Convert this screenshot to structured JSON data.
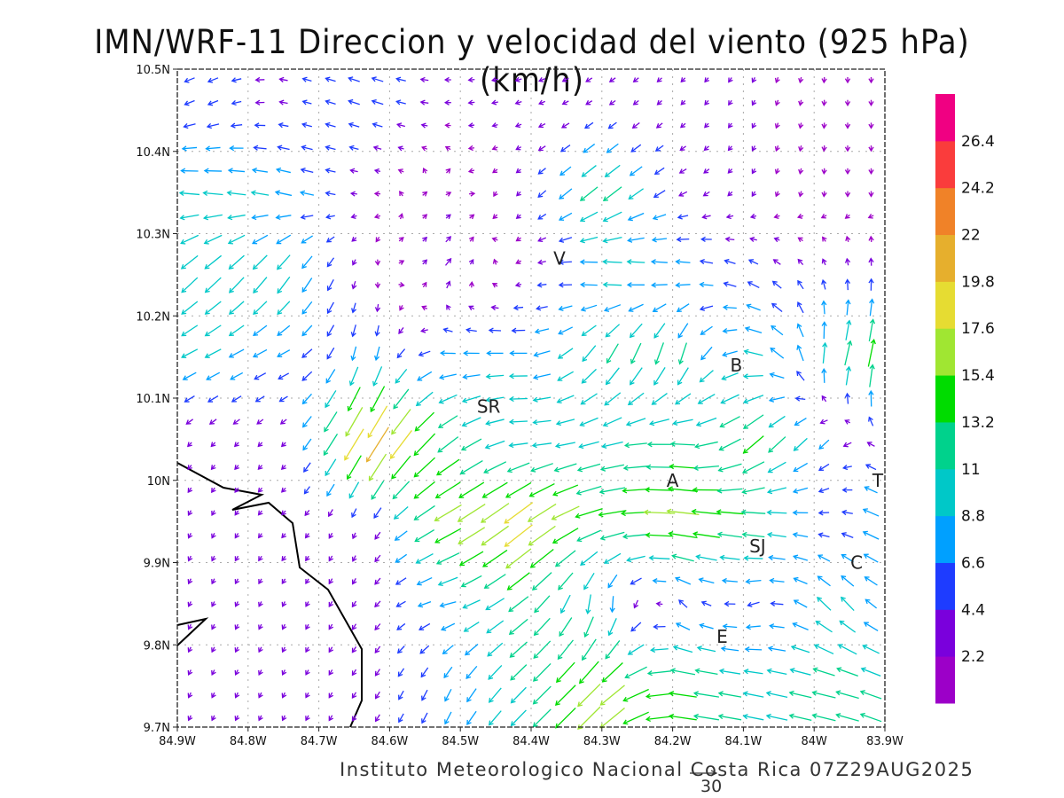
{
  "title": "IMN/WRF-11 Direccion y velocidad del viento (925 hPa)(km/h)",
  "footer": "Instituto Meteorologico Nacional Costa Rica  07Z29AUG2025",
  "reference_vector": {
    "label": "30",
    "value": 30
  },
  "chart_data": {
    "type": "vector-field",
    "units": "km/h",
    "xlim": [
      -84.9,
      -83.9
    ],
    "ylim": [
      9.7,
      10.5
    ],
    "x_ticks": [
      "84.9W",
      "84.8W",
      "84.7W",
      "84.6W",
      "84.5W",
      "84.4W",
      "84.3W",
      "84.2W",
      "84.1W",
      "84W",
      "83.9W"
    ],
    "y_ticks": [
      "10.5N",
      "10.4N",
      "10.3N",
      "10.2N",
      "10.1N",
      "10N",
      "9.9N",
      "9.8N",
      "9.7N"
    ],
    "grid": true,
    "colorbar": {
      "labels": [
        "2.2",
        "4.4",
        "6.6",
        "8.8",
        "11",
        "13.2",
        "15.4",
        "17.6",
        "19.8",
        "22",
        "24.2",
        "26.4"
      ],
      "colors": [
        "#9c00c8",
        "#7a00dc",
        "#1e3cff",
        "#00a0ff",
        "#00c8c8",
        "#00d28c",
        "#00dc00",
        "#a0e632",
        "#e6dc32",
        "#e6af2d",
        "#f08228",
        "#fa3c3c",
        "#f00082"
      ]
    },
    "coarse_grid_lat": [
      10.45,
      10.35,
      10.25,
      10.15,
      10.05,
      9.95,
      9.85,
      9.75
    ],
    "coarse_grid_lon": [
      -84.85,
      -84.74,
      -84.63,
      -84.52,
      -84.41,
      -84.3,
      -84.19,
      -84.08,
      -83.97,
      -83.9
    ],
    "wind_uv": [
      [
        [
          -5,
          -2
        ],
        [
          -4,
          1
        ],
        [
          -6,
          2
        ],
        [
          -3,
          0
        ],
        [
          -3,
          -1
        ],
        [
          -3,
          -2
        ],
        [
          -2,
          -2
        ],
        [
          -1,
          -2
        ],
        [
          0,
          -2
        ],
        [
          0,
          -2
        ]
      ],
      [
        [
          -10,
          1
        ],
        [
          -8,
          2
        ],
        [
          -2,
          0
        ],
        [
          2,
          1
        ],
        [
          -2,
          -2
        ],
        [
          -10,
          -8
        ],
        [
          -4,
          -2
        ],
        [
          -1,
          -2
        ],
        [
          0,
          -2
        ],
        [
          0,
          -2
        ]
      ],
      [
        [
          -8,
          -8
        ],
        [
          -6,
          -9
        ],
        [
          0,
          -2
        ],
        [
          3,
          4
        ],
        [
          -2,
          -1
        ],
        [
          -10,
          2
        ],
        [
          -8,
          1
        ],
        [
          -5,
          3
        ],
        [
          -1,
          4
        ],
        [
          0,
          5
        ]
      ],
      [
        [
          -8,
          -4
        ],
        [
          -6,
          -3
        ],
        [
          -1,
          -8
        ],
        [
          -8,
          0
        ],
        [
          -9,
          0
        ],
        [
          -6,
          -10
        ],
        [
          -3,
          -12
        ],
        [
          -10,
          3
        ],
        [
          3,
          12
        ],
        [
          3,
          15
        ]
      ],
      [
        [
          -2,
          -2
        ],
        [
          -2,
          -2
        ],
        [
          -12,
          -20
        ],
        [
          -10,
          -8
        ],
        [
          -9,
          0
        ],
        [
          -10,
          -3
        ],
        [
          -12,
          1
        ],
        [
          -10,
          -10
        ],
        [
          -4,
          -4
        ],
        [
          -3,
          4
        ]
      ],
      [
        [
          -1,
          -2
        ],
        [
          -2,
          -2
        ],
        [
          -1,
          -3
        ],
        [
          -14,
          -8
        ],
        [
          -15,
          -12
        ],
        [
          -14,
          -3
        ],
        [
          -17,
          2
        ],
        [
          -12,
          2
        ],
        [
          -4,
          0
        ],
        [
          -10,
          5
        ]
      ],
      [
        [
          -1,
          -2
        ],
        [
          -1,
          -2
        ],
        [
          -2,
          -3
        ],
        [
          -8,
          -2
        ],
        [
          -10,
          -8
        ],
        [
          0,
          -10
        ],
        [
          -4,
          4
        ],
        [
          -6,
          -2
        ],
        [
          -7,
          8
        ],
        [
          -5,
          3
        ]
      ],
      [
        [
          -1,
          -2
        ],
        [
          -1,
          -2
        ],
        [
          -2,
          -3
        ],
        [
          -3,
          -6
        ],
        [
          -8,
          -8
        ],
        [
          -12,
          -12
        ],
        [
          -14,
          2
        ],
        [
          -10,
          2
        ],
        [
          -12,
          3
        ],
        [
          -10,
          4
        ]
      ]
    ],
    "stations": [
      {
        "label": "V",
        "lon": -84.36,
        "lat": 10.27
      },
      {
        "label": "SR",
        "lon": -84.46,
        "lat": 10.09
      },
      {
        "label": "B",
        "lon": -84.11,
        "lat": 10.14
      },
      {
        "label": "A",
        "lon": -84.2,
        "lat": 10.0
      },
      {
        "label": "SJ",
        "lon": -84.08,
        "lat": 9.92
      },
      {
        "label": "C",
        "lon": -83.94,
        "lat": 9.9
      },
      {
        "label": "E",
        "lon": -84.13,
        "lat": 9.81
      },
      {
        "label": "T",
        "lon": -83.91,
        "lat": 10.0
      }
    ]
  }
}
